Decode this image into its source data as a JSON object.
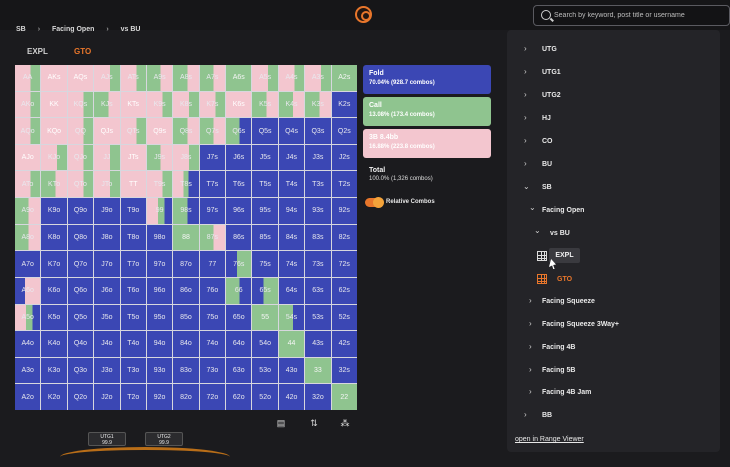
{
  "header": {
    "search_placeholder": "Search by keyword, post title or username",
    "breadcrumb": [
      "SB",
      "Facing Open",
      "vs BU"
    ]
  },
  "tabs": [
    {
      "label": "EXPL",
      "color": "#cfcfcf"
    },
    {
      "label": "GTO",
      "color": "#e8762b"
    }
  ],
  "matrix": {
    "hands": [
      [
        "AA",
        "AKs",
        "AQs",
        "AJs",
        "ATs",
        "A9s",
        "A8s",
        "A7s",
        "A6s",
        "A5s",
        "A4s",
        "A3s",
        "A2s"
      ],
      [
        "AKo",
        "KK",
        "KQs",
        "KJs",
        "KTs",
        "K9s",
        "K8s",
        "K7s",
        "K6s",
        "K5s",
        "K4s",
        "K3s",
        "K2s"
      ],
      [
        "AQo",
        "KQo",
        "QQ",
        "QJs",
        "QTs",
        "Q9s",
        "Q8s",
        "Q7s",
        "Q6s",
        "Q5s",
        "Q4s",
        "Q3s",
        "Q2s"
      ],
      [
        "AJo",
        "KJo",
        "QJo",
        "JJ",
        "JTs",
        "J9s",
        "J8s",
        "J7s",
        "J6s",
        "J5s",
        "J4s",
        "J3s",
        "J2s"
      ],
      [
        "ATo",
        "KTo",
        "QTo",
        "JTo",
        "TT",
        "T9s",
        "T8s",
        "T7s",
        "T6s",
        "T5s",
        "T4s",
        "T3s",
        "T2s"
      ],
      [
        "A9o",
        "K9o",
        "Q9o",
        "J9o",
        "T9o",
        "99",
        "98s",
        "97s",
        "96s",
        "95s",
        "94s",
        "93s",
        "92s"
      ],
      [
        "A8o",
        "K8o",
        "Q8o",
        "J8o",
        "T8o",
        "98o",
        "88",
        "87s",
        "86s",
        "85s",
        "84s",
        "83s",
        "82s"
      ],
      [
        "A7o",
        "K7o",
        "Q7o",
        "J7o",
        "T7o",
        "97o",
        "87o",
        "77",
        "76s",
        "75s",
        "74s",
        "73s",
        "72s"
      ],
      [
        "A6o",
        "K6o",
        "Q6o",
        "J6o",
        "T6o",
        "96o",
        "86o",
        "76o",
        "66",
        "65s",
        "64s",
        "63s",
        "62s"
      ],
      [
        "A5o",
        "K5o",
        "Q5o",
        "J5o",
        "T5o",
        "95o",
        "85o",
        "75o",
        "65o",
        "55",
        "54s",
        "53s",
        "52s"
      ],
      [
        "A4o",
        "K4o",
        "Q4o",
        "J4o",
        "T4o",
        "94o",
        "84o",
        "74o",
        "64o",
        "54o",
        "44",
        "43s",
        "42s"
      ],
      [
        "A3o",
        "K3o",
        "Q3o",
        "J3o",
        "T3o",
        "93o",
        "83o",
        "73o",
        "63o",
        "53o",
        "43o",
        "33",
        "32s"
      ],
      [
        "A2o",
        "K2o",
        "Q2o",
        "J2o",
        "T2o",
        "92o",
        "82o",
        "72o",
        "62o",
        "52o",
        "42o",
        "32o",
        "22"
      ]
    ],
    "actions": [
      [
        "mix-rc",
        "raise",
        "raise",
        "mix-rc",
        "mix-rc",
        "mix-cr",
        "mix-cr",
        "mix-cr",
        "call",
        "mix-rc",
        "mix-rc",
        "mix-rc",
        "call"
      ],
      [
        "mix-rc",
        "raise",
        "mix-rc",
        "mix-cr",
        "raise",
        "mix-rc",
        "mix-rc",
        "mix-rc",
        "raise",
        "mix-cr",
        "mix-cr",
        "mix-cr",
        "fold"
      ],
      [
        "mix-rc",
        "raise",
        "mix-rc",
        "raise",
        "mix-rc",
        "raise",
        "mix-cr",
        "mix-cr",
        "mix-cf",
        "fold",
        "fold",
        "fold",
        "fold"
      ],
      [
        "raise",
        "mix-rc",
        "mix-rc",
        "mix-rc",
        "raise",
        "mix-cr",
        "mix-rc",
        "fold",
        "fold",
        "fold",
        "fold",
        "fold",
        "fold"
      ],
      [
        "mix-rc",
        "mix-cr",
        "mix-rc",
        "mix-rc",
        "raise",
        "mix-rc",
        "mix-rcf",
        "fold",
        "fold",
        "fold",
        "fold",
        "fold",
        "fold"
      ],
      [
        "mix-cr",
        "fold",
        "fold",
        "fold",
        "fold",
        "mix-rf",
        "mix-cf",
        "fold",
        "fold",
        "fold",
        "fold",
        "fold",
        "fold"
      ],
      [
        "mix-cr",
        "fold",
        "fold",
        "fold",
        "fold",
        "fold",
        "call",
        "mix-cr",
        "fold",
        "fold",
        "fold",
        "fold",
        "fold"
      ],
      [
        "fold",
        "fold",
        "fold",
        "fold",
        "fold",
        "fold",
        "fold",
        "fold",
        "mix-fc",
        "fold",
        "fold",
        "fold",
        "fold"
      ],
      [
        "mix-fr",
        "fold",
        "fold",
        "fold",
        "fold",
        "fold",
        "fold",
        "fold",
        "mix-cf",
        "mix-fc",
        "fold",
        "fold",
        "fold"
      ],
      [
        "mix-rf",
        "fold",
        "fold",
        "fold",
        "fold",
        "fold",
        "fold",
        "fold",
        "fold",
        "call",
        "mix-cf",
        "fold",
        "fold"
      ],
      [
        "fold",
        "fold",
        "fold",
        "fold",
        "fold",
        "fold",
        "fold",
        "fold",
        "fold",
        "fold",
        "call",
        "fold",
        "fold"
      ],
      [
        "fold",
        "fold",
        "fold",
        "fold",
        "fold",
        "fold",
        "fold",
        "fold",
        "fold",
        "fold",
        "fold",
        "call",
        "fold"
      ],
      [
        "fold",
        "fold",
        "fold",
        "fold",
        "fold",
        "fold",
        "fold",
        "fold",
        "fold",
        "fold",
        "fold",
        "fold",
        "call"
      ]
    ]
  },
  "legend": [
    {
      "label": "Fold",
      "detail": "70.04% (928.7 combos)",
      "color": "#3b47b4"
    },
    {
      "label": "Call",
      "detail": "13.08% (173.4 combos)",
      "color": "#8fc48f"
    },
    {
      "label": "3B 8.4bb",
      "detail": "16.88% (223.8 combos)",
      "color": "#f3c6cf"
    }
  ],
  "total": {
    "label": "Total",
    "detail": "100.0% (1,326 combos)"
  },
  "toggle": {
    "label": "Relative Combos",
    "on": true
  },
  "table": {
    "seats": [
      {
        "name": "UTG1",
        "stack": "99.9"
      },
      {
        "name": "UTG2",
        "stack": "99.9"
      }
    ]
  },
  "sidebar": {
    "positions_top": [
      "UTG",
      "UTG1",
      "UTG2",
      "HJ",
      "CO",
      "BU"
    ],
    "sb": "SB",
    "sb_children": [
      "Facing Open"
    ],
    "facing_open_child": "vs BU",
    "strategies": [
      "EXPL",
      "GTO"
    ],
    "sb_more": [
      "Facing Squeeze",
      "Facing Squeeze 3Way+",
      "Facing 4B",
      "Facing 5B",
      "Facing 4B Jam"
    ],
    "bb": "BB",
    "open_link": "open in Range Viewer"
  }
}
